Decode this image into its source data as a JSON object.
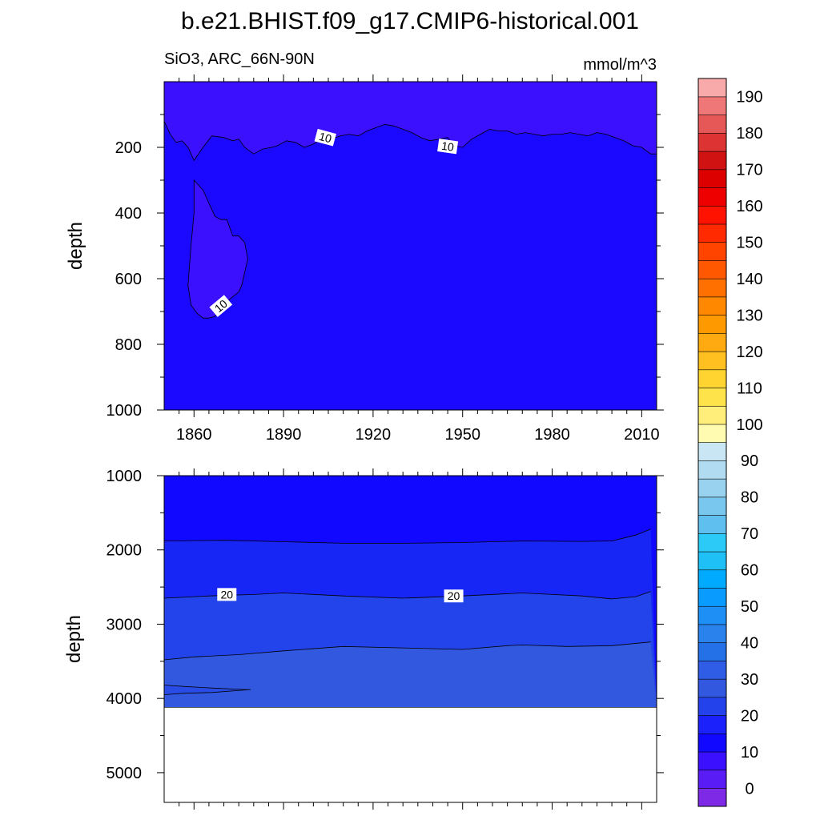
{
  "figure": {
    "title": "b.e21.BHIST.f09_g17.CMIP6-historical.001",
    "subtitle_left": "SiO3, ARC_66N-90N",
    "subtitle_right": "mmol/m^3"
  },
  "chart_data": [
    {
      "type": "heatmap",
      "panel": "upper",
      "xlabel": "",
      "ylabel": "depth",
      "xlim": [
        1850,
        2015
      ],
      "ylim": [
        1000,
        0
      ],
      "x_ticks": [
        1860,
        1890,
        1920,
        1950,
        1980,
        2010
      ],
      "x_tick_labels": [
        "1860",
        "1890",
        "1920",
        "1950",
        "1980",
        "2010"
      ],
      "y_ticks": [
        200,
        400,
        600,
        800,
        1000
      ],
      "y_tick_labels": [
        "200",
        "400",
        "600",
        "800",
        "1000"
      ],
      "fill_levels": [
        {
          "range": [
            5,
            10
          ],
          "color": "#3a10ff"
        },
        {
          "range": [
            10,
            15
          ],
          "color": "#1a08ff"
        }
      ],
      "contour_labels": [
        {
          "text": "10",
          "x": 1904,
          "y": 170
        },
        {
          "text": "10",
          "x": 1945,
          "y": 197
        },
        {
          "text": "10",
          "x": 1869,
          "y": 683
        }
      ],
      "contour_10_boundary": {
        "x": [
          1850,
          1852,
          1854,
          1856,
          1858,
          1860,
          1863,
          1866,
          1870,
          1873,
          1875,
          1877,
          1880,
          1883,
          1886,
          1888,
          1891,
          1894,
          1897,
          1900,
          1903,
          1906,
          1909,
          1912,
          1915,
          1918,
          1921,
          1924,
          1927,
          1930,
          1933,
          1936,
          1939,
          1942,
          1945,
          1947,
          1950,
          1953,
          1956,
          1959,
          1962,
          1965,
          1968,
          1971,
          1974,
          1977,
          1980,
          1983,
          1986,
          1989,
          1992,
          1995,
          1998,
          2001,
          2004,
          2007,
          2010,
          2013
        ],
        "depth": [
          120,
          160,
          185,
          180,
          200,
          240,
          200,
          165,
          170,
          180,
          175,
          200,
          220,
          205,
          200,
          195,
          180,
          185,
          200,
          190,
          175,
          175,
          165,
          160,
          165,
          150,
          140,
          130,
          135,
          145,
          155,
          170,
          180,
          175,
          170,
          195,
          200,
          175,
          160,
          145,
          150,
          150,
          160,
          155,
          160,
          165,
          160,
          160,
          155,
          160,
          165,
          155,
          160,
          170,
          180,
          195,
          200,
          220
        ]
      },
      "pocket_lt10": {
        "x": [
          1860,
          1861,
          1863,
          1864,
          1865,
          1867,
          1869,
          1871,
          1873,
          1875,
          1877,
          1878,
          1877,
          1876,
          1875,
          1873,
          1871,
          1870,
          1868,
          1867,
          1865,
          1863,
          1861,
          1859,
          1858,
          1859,
          1860
        ],
        "depth": [
          300,
          310,
          330,
          350,
          370,
          410,
          420,
          420,
          470,
          470,
          490,
          540,
          580,
          620,
          640,
          655,
          670,
          680,
          700,
          715,
          720,
          720,
          705,
          680,
          620,
          500,
          400
        ]
      }
    },
    {
      "type": "heatmap",
      "panel": "lower",
      "xlabel": "",
      "ylabel": "depth",
      "xlim": [
        1850,
        2015
      ],
      "ylim": [
        5400,
        1000
      ],
      "y_ticks": [
        1000,
        2000,
        3000,
        4000,
        5000
      ],
      "y_tick_labels": [
        "1000",
        "2000",
        "3000",
        "4000",
        "5000"
      ],
      "seafloor_depth": 4120,
      "fill_levels": [
        {
          "range": [
            10,
            15
          ],
          "color": "#1008ff"
        },
        {
          "range": [
            15,
            20
          ],
          "color": "#1826f5"
        },
        {
          "range": [
            20,
            25
          ],
          "color": "#2244ea"
        },
        {
          "range": [
            25,
            30
          ],
          "color": "#3358e0"
        },
        {
          "range": [
            30,
            35
          ],
          "color": "#2a4ce6"
        }
      ],
      "contour_labels": [
        {
          "text": "20",
          "x": 1871,
          "y": 2600
        },
        {
          "text": "20",
          "x": 1947,
          "y": 2620
        }
      ],
      "contour_15": {
        "x": [
          1850,
          1870,
          1890,
          1910,
          1930,
          1950,
          1970,
          1990,
          2000,
          2008,
          2013
        ],
        "depth": [
          1880,
          1870,
          1890,
          1910,
          1910,
          1900,
          1880,
          1885,
          1880,
          1800,
          1720
        ]
      },
      "contour_20": {
        "x": [
          1850,
          1865,
          1880,
          1890,
          1910,
          1930,
          1950,
          1970,
          1990,
          2000,
          2008,
          2013
        ],
        "depth": [
          2650,
          2620,
          2600,
          2580,
          2620,
          2650,
          2620,
          2580,
          2620,
          2660,
          2630,
          2560
        ]
      },
      "contour_25": {
        "x": [
          1850,
          1860,
          1875,
          1890,
          1910,
          1930,
          1950,
          1965,
          1970,
          1985,
          2000,
          2013
        ],
        "depth": [
          3480,
          3440,
          3410,
          3360,
          3300,
          3320,
          3340,
          3290,
          3280,
          3300,
          3290,
          3240
        ]
      },
      "contour_30_lens": {
        "x": [
          1850,
          1857,
          1866,
          1877,
          1879,
          1866,
          1857,
          1850
        ],
        "depth": [
          3820,
          3840,
          3860,
          3880,
          3880,
          3920,
          3930,
          3950
        ]
      }
    }
  ],
  "colorbar": {
    "tick_labels": [
      "0",
      "10",
      "20",
      "30",
      "40",
      "50",
      "60",
      "70",
      "80",
      "90",
      "100",
      "110",
      "120",
      "130",
      "140",
      "150",
      "160",
      "170",
      "180",
      "190"
    ],
    "colors": [
      "#7d29e6",
      "#5a1cf5",
      "#3a10ff",
      "#1008ff",
      "#1a21fa",
      "#2442ec",
      "#3358e0",
      "#2f5de6",
      "#2470e6",
      "#2a82ec",
      "#1d8ff5",
      "#0a9bff",
      "#00aaff",
      "#1fc0f5",
      "#2ccbf7",
      "#5fbfef",
      "#79c6ee",
      "#99d2ee",
      "#b1dbf1",
      "#c9e6f5",
      "#fffbb0",
      "#ffef7a",
      "#ffe34a",
      "#ffd330",
      "#ffc020",
      "#ffaa10",
      "#ff9900",
      "#ff8800",
      "#ff7000",
      "#ff5800",
      "#ff4400",
      "#ff2a00",
      "#ff1200",
      "#ee0000",
      "#dd0000",
      "#d11212",
      "#dd3333",
      "#e65757",
      "#ef7777",
      "#f8aaaa"
    ]
  }
}
